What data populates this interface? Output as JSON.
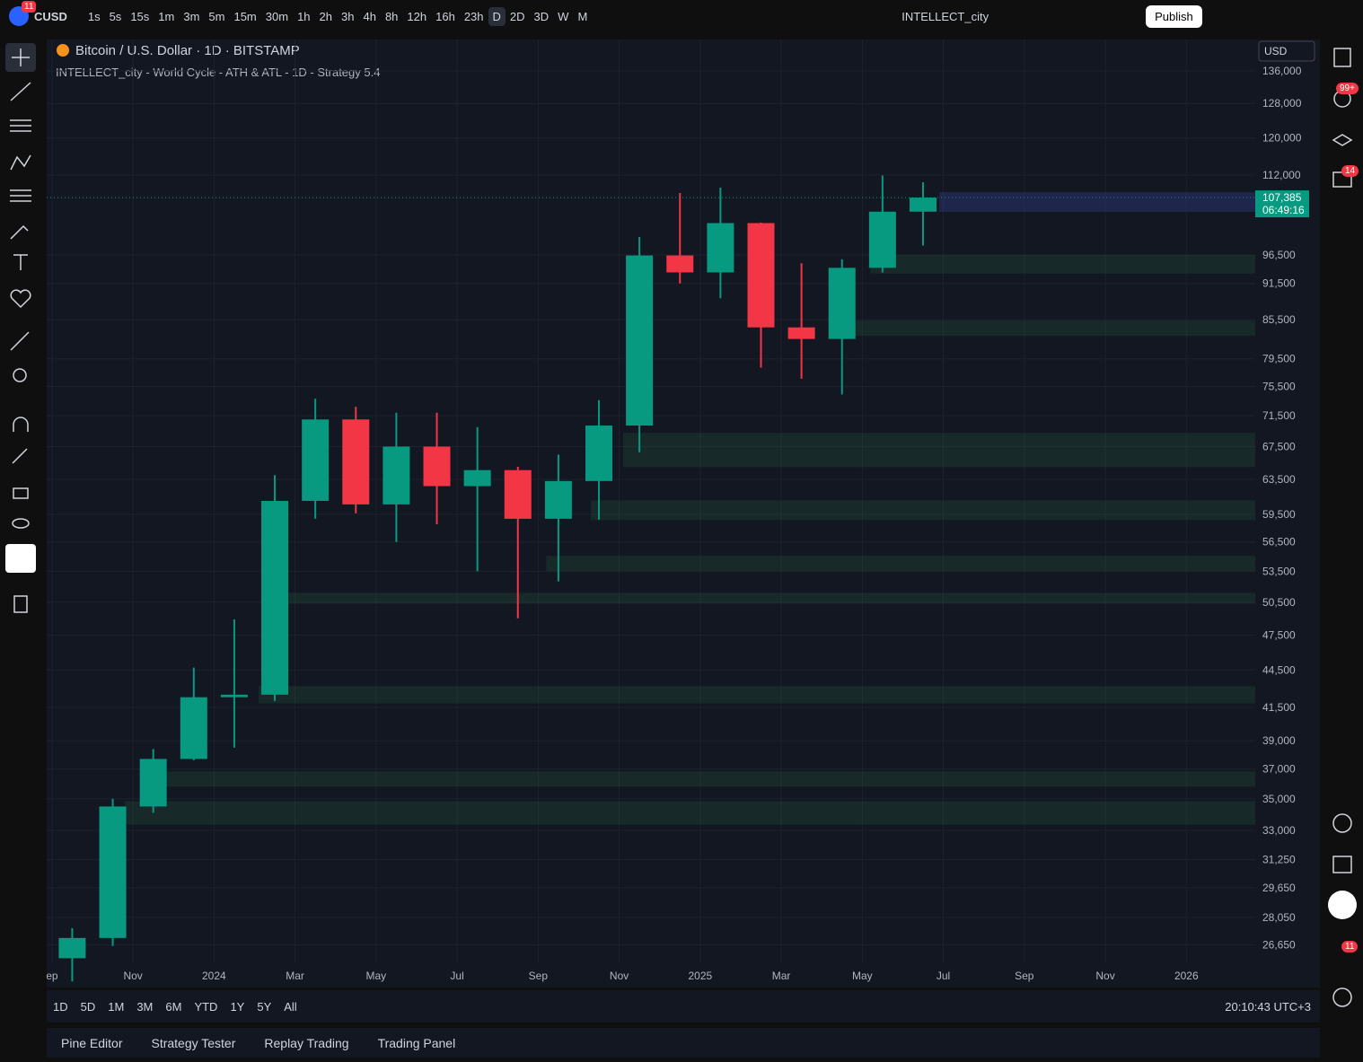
{
  "header": {
    "symbol": "CUSD",
    "badge": "11",
    "intervals": [
      "1s",
      "5s",
      "15s",
      "1m",
      "3m",
      "5m",
      "15m",
      "30m",
      "1h",
      "2h",
      "3h",
      "4h",
      "8h",
      "12h",
      "16h",
      "23h",
      "D",
      "2D",
      "3D",
      "W",
      "M"
    ],
    "active_interval": "D",
    "layout_name": "INTELLECT_city",
    "publish": "Publish"
  },
  "legend": {
    "title": "Bitcoin / U.S. Dollar · 1D · BITSTAMP",
    "indicator": "INTELLECT_city - World Cycle - ATH & ATL - 1D - Strategy 5.4"
  },
  "currency": "USD",
  "chart_data": {
    "type": "candlestick",
    "x": [
      0.5,
      1.5,
      2.5,
      3.5,
      4.5,
      5.5,
      6.5,
      7.5,
      8.5,
      9.5,
      10.5,
      11.5,
      12.5,
      13.5,
      14.5,
      15.5,
      16.5,
      17.5,
      18.5,
      19.5,
      20.5,
      21.5
    ],
    "open": [
      26000,
      27000,
      34500,
      37700,
      42300,
      42500,
      61000,
      71000,
      60600,
      67500,
      62700,
      64600,
      59000,
      63300,
      70200,
      96400,
      93400,
      102400,
      84300,
      82500,
      94200,
      104600
    ],
    "high": [
      27500,
      35000,
      38400,
      44700,
      48900,
      64000,
      73800,
      72700,
      71900,
      71900,
      70000,
      65000,
      66500,
      73600,
      99800,
      108300,
      109400,
      102500,
      95000,
      95700,
      111900,
      110500
    ],
    "low": [
      24900,
      26600,
      34100,
      37600,
      38500,
      42000,
      59000,
      59600,
      56500,
      58400,
      53500,
      49000,
      52500,
      58900,
      66800,
      91500,
      89000,
      78200,
      76600,
      74400,
      93400,
      98200
    ],
    "close": [
      27000,
      34500,
      37700,
      42300,
      42500,
      61000,
      71000,
      60600,
      67500,
      62700,
      64600,
      59000,
      63300,
      70200,
      96400,
      93400,
      102400,
      84300,
      82500,
      94200,
      104600,
      107385
    ],
    "colors": {
      "up": "#089981",
      "down": "#f23645"
    },
    "log_scale": true,
    "grid": true,
    "ylim": [
      25800,
      144200
    ],
    "yticks": [
      {
        "value": 136000,
        "label": "136,000"
      },
      {
        "value": 128000,
        "label": "128,000"
      },
      {
        "value": 120000,
        "label": "120,000"
      },
      {
        "value": 112000,
        "label": "112,000"
      },
      {
        "value": 96500,
        "label": "96,500"
      },
      {
        "value": 91500,
        "label": "91,500"
      },
      {
        "value": 85500,
        "label": "85,500"
      },
      {
        "value": 79500,
        "label": "79,500"
      },
      {
        "value": 75500,
        "label": "75,500"
      },
      {
        "value": 71500,
        "label": "71,500"
      },
      {
        "value": 67500,
        "label": "67,500"
      },
      {
        "value": 63500,
        "label": "63,500"
      },
      {
        "value": 59500,
        "label": "59,500"
      },
      {
        "value": 56500,
        "label": "56,500"
      },
      {
        "value": 53500,
        "label": "53,500"
      },
      {
        "value": 50500,
        "label": "50,500"
      },
      {
        "value": 47500,
        "label": "47,500"
      },
      {
        "value": 44500,
        "label": "44,500"
      },
      {
        "value": 41500,
        "label": "41,500"
      },
      {
        "value": 39000,
        "label": "39,000"
      },
      {
        "value": 37000,
        "label": "37,000"
      },
      {
        "value": 35000,
        "label": "35,000"
      },
      {
        "value": 33000,
        "label": "33,000"
      },
      {
        "value": 31250,
        "label": "31,250"
      },
      {
        "value": 29650,
        "label": "29,650"
      },
      {
        "value": 28050,
        "label": "28,050"
      },
      {
        "value": 26650,
        "label": "26,650"
      }
    ],
    "xlim": [
      -0.13,
      29.7
    ],
    "xticks": [
      {
        "value": 0,
        "label": "ep"
      },
      {
        "value": 2,
        "label": "Nov"
      },
      {
        "value": 4,
        "label": "2024"
      },
      {
        "value": 6,
        "label": "Mar"
      },
      {
        "value": 8,
        "label": "May"
      },
      {
        "value": 10,
        "label": "Jul"
      },
      {
        "value": 12,
        "label": "Sep"
      },
      {
        "value": 14,
        "label": "Nov"
      },
      {
        "value": 16,
        "label": "2025"
      },
      {
        "value": 18,
        "label": "Mar"
      },
      {
        "value": 20,
        "label": "May"
      },
      {
        "value": 22,
        "label": "Jul"
      },
      {
        "value": 24,
        "label": "Sep"
      },
      {
        "value": 26,
        "label": "Nov"
      },
      {
        "value": 28,
        "label": "2026"
      }
    ],
    "last_price": {
      "value": 107385,
      "label": "107,385"
    },
    "countdown": "06:49:16",
    "current_zone": {
      "low": 104560,
      "high": 108470,
      "start": 21.9,
      "color": "rgba(41,50,110,0.55)"
    },
    "zone_color": "rgba(40,110,65,0.22)",
    "zones": [
      {
        "low": 93200,
        "high": 96500,
        "start": 20.2
      },
      {
        "low": 82980,
        "high": 85370,
        "start": 19.65
      },
      {
        "low": 64970,
        "high": 69250,
        "start": 14.1
      },
      {
        "low": 58860,
        "high": 61060,
        "start": 13.3
      },
      {
        "low": 53500,
        "high": 55050,
        "start": 12.2
      },
      {
        "low": 50360,
        "high": 51390,
        "start": 5.8
      },
      {
        "low": 41820,
        "high": 43180,
        "start": 5.1
      },
      {
        "low": 35800,
        "high": 36830,
        "start": 2.7
      },
      {
        "low": 33360,
        "high": 34840,
        "start": 1.8
      }
    ]
  },
  "range_bar": {
    "ranges": [
      "1D",
      "5D",
      "1M",
      "3M",
      "6M",
      "YTD",
      "1Y",
      "5Y",
      "All"
    ],
    "clock": "20:10:43 UTC+3"
  },
  "tabs": [
    "Pine Editor",
    "Strategy Tester",
    "Replay Trading",
    "Trading Panel"
  ],
  "sidebar_badges": [
    "99+",
    "14",
    "11"
  ]
}
